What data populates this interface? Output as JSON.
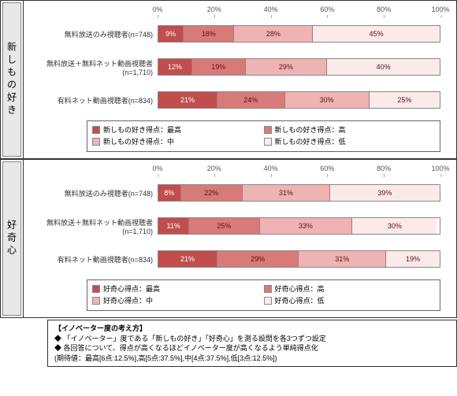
{
  "colors": {
    "seg1": "#c14d4d",
    "seg2": "#d97a7a",
    "seg3": "#efb3b3",
    "seg4": "#faeaea",
    "border": "#333333",
    "bg": "#ffffff",
    "vlabel_bg": "#e8e8e8",
    "text": "#333333"
  },
  "axis": {
    "min": 0,
    "max": 100,
    "ticks": [
      0,
      20,
      40,
      60,
      80,
      100
    ],
    "suffix": "%"
  },
  "panels": [
    {
      "vlabel": "新しもの好き",
      "rows": [
        {
          "label": "無料放送のみ視聴者(n=748)",
          "values": [
            9,
            18,
            28,
            45
          ]
        },
        {
          "label": "無料放送＋無料ネット動画視聴者(n=1,710)",
          "values": [
            12,
            19,
            29,
            40
          ]
        },
        {
          "label": "有料ネット動画視聴者(n=834)",
          "values": [
            21,
            24,
            30,
            25
          ]
        }
      ],
      "legend": [
        "新しもの好き得点：最高",
        "新しもの好き得点：高",
        "新しもの好き得点：中",
        "新しもの好き得点：低"
      ]
    },
    {
      "vlabel": "好奇心",
      "rows": [
        {
          "label": "無料放送のみ視聴者(n=748)",
          "values": [
            8,
            22,
            31,
            39
          ]
        },
        {
          "label": "無料放送＋無料ネット動画視聴者(n=1,710)",
          "values": [
            11,
            25,
            33,
            30
          ]
        },
        {
          "label": "有料ネット動画視聴者(n=834)",
          "values": [
            21,
            29,
            31,
            19
          ]
        }
      ],
      "legend": [
        "好奇心得点：最高",
        "好奇心得点：高",
        "好奇心得点：中",
        "好奇心得点：低"
      ]
    }
  ],
  "footnote": {
    "title": "【イノベーター度の考え方】",
    "lines": [
      "「イノベーター」度である「新しもの好き」「好奇心」を測る設問を各3つずつ設定",
      "各回答について、得点が高くなるほどイノベーター度が高くなるよう単純得点化",
      "(期待値：最高[6点:12.5%],高[5点:37.5%],中[4点:37.5%],低[3点:12.5%])"
    ]
  }
}
